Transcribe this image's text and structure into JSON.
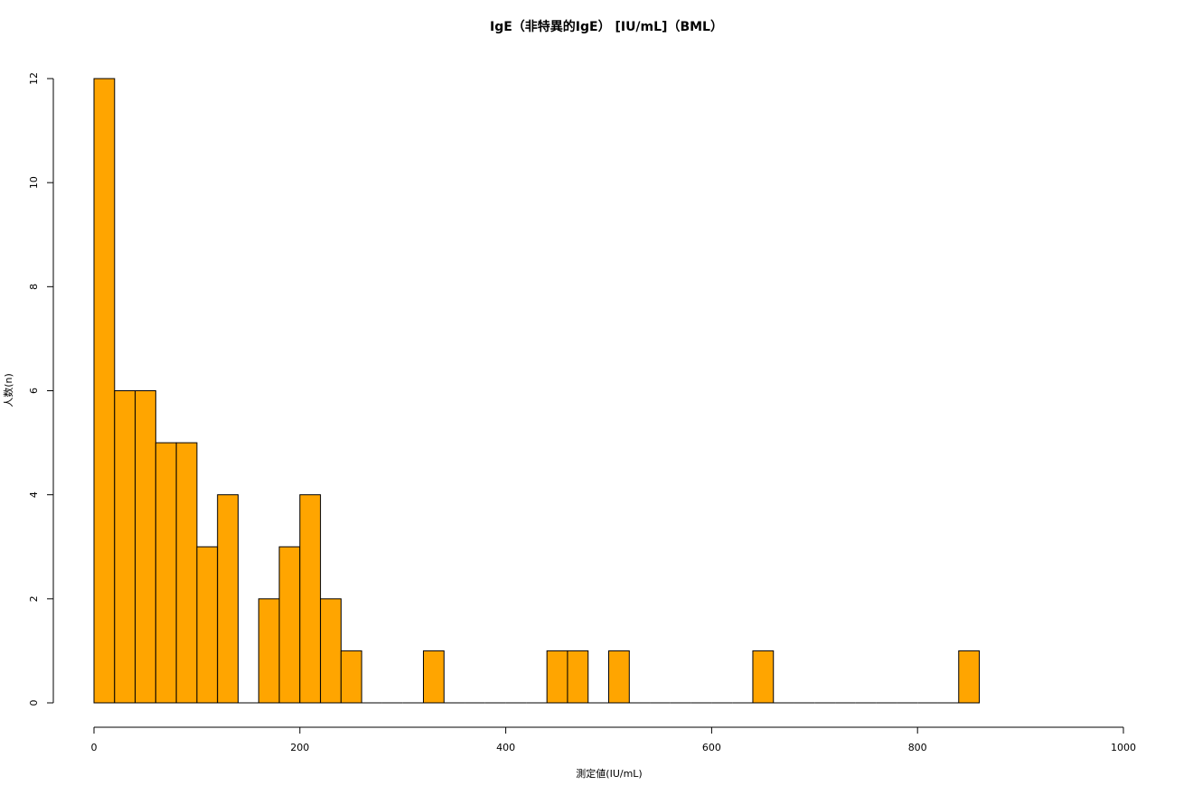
{
  "chart_data": {
    "type": "histogram",
    "title": "IgE（非特異的IgE） [IU/mL]（BML）",
    "xlabel": "測定値(IU/mL)",
    "ylabel": "人数(n)",
    "bins": [
      0,
      20,
      40,
      60,
      80,
      100,
      120,
      140,
      160,
      180,
      200,
      220,
      240,
      260,
      280,
      300,
      320,
      340,
      360,
      380,
      400,
      420,
      440,
      460,
      480,
      500,
      520,
      540,
      560,
      580,
      600,
      620,
      640,
      660,
      680,
      700,
      720,
      740,
      760,
      780,
      800,
      820,
      840,
      860
    ],
    "values": [
      12,
      6,
      6,
      5,
      5,
      3,
      4,
      0,
      2,
      3,
      4,
      2,
      1,
      0,
      0,
      0,
      1,
      0,
      0,
      0,
      0,
      0,
      1,
      1,
      0,
      1,
      0,
      0,
      0,
      0,
      0,
      0,
      1,
      0,
      0,
      0,
      0,
      0,
      0,
      0,
      0,
      0,
      1
    ],
    "color": "#FFA500",
    "xlim": [
      0,
      1000
    ],
    "xticks": [
      0,
      200,
      400,
      600,
      800,
      1000
    ],
    "ylim": [
      0,
      12
    ],
    "yticks": [
      0,
      2,
      4,
      6,
      8,
      10,
      12
    ]
  }
}
